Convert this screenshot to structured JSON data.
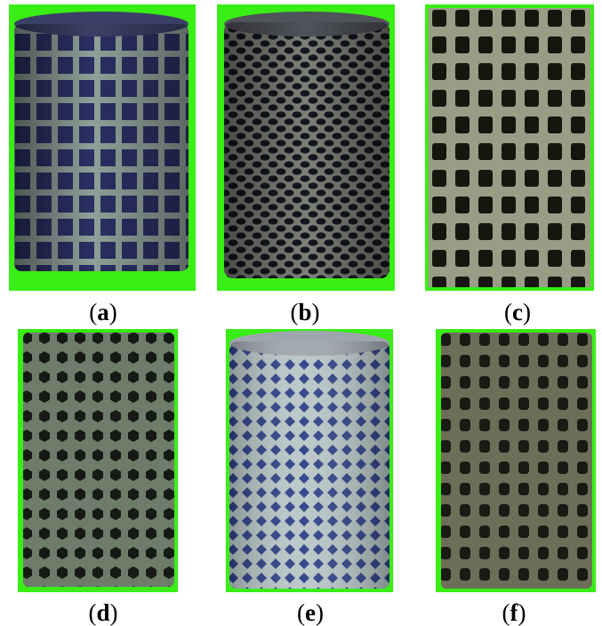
{
  "figure": {
    "panels": [
      {
        "id": "a",
        "caption_open": "(",
        "caption_letter": "a",
        "caption_close": ")",
        "lattice": "square-grid",
        "strut_color": "#8fa09a",
        "void_color": "#2b2f63"
      },
      {
        "id": "b",
        "caption_open": "(",
        "caption_letter": "b",
        "caption_close": ")",
        "lattice": "hexagonal-holes",
        "strut_color": "#7d8079",
        "void_color": "#14161f"
      },
      {
        "id": "c",
        "caption_open": "(",
        "caption_letter": "c",
        "caption_close": ")",
        "lattice": "square-holes",
        "strut_color": "#9a9d86",
        "void_color": "#16160f"
      },
      {
        "id": "d",
        "caption_open": "(",
        "caption_letter": "d",
        "caption_close": ")",
        "lattice": "hex-cells",
        "strut_color": "#6e7d6a",
        "void_color": "#151a14"
      },
      {
        "id": "e",
        "caption_open": "(",
        "caption_letter": "e",
        "caption_close": ")",
        "lattice": "diamond-mesh",
        "strut_color": "#b8c6c7",
        "void_color": "#2c3f86"
      },
      {
        "id": "f",
        "caption_open": "(",
        "caption_letter": "f",
        "caption_close": ")",
        "lattice": "rectangular-cells",
        "strut_color": "#6d6e58",
        "void_color": "#1a1a14"
      }
    ],
    "background_color": "#39ee14"
  }
}
